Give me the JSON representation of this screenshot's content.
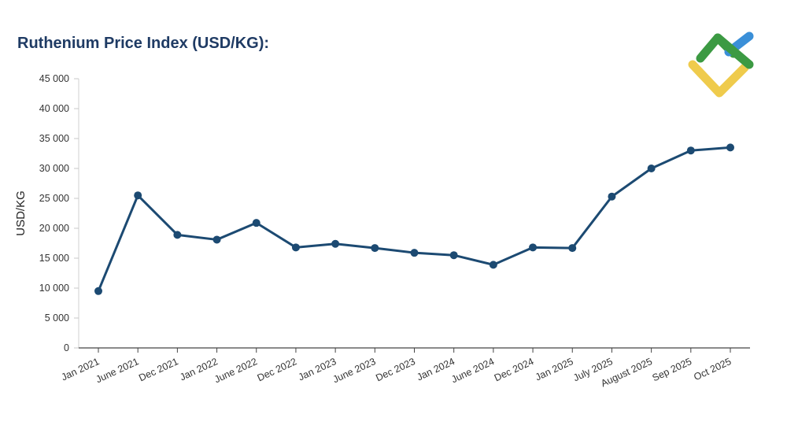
{
  "chart_data": {
    "type": "line",
    "title": "Ruthenium Price Index (USD/KG):",
    "ylabel": "USD/KG",
    "xlabel": "",
    "ylim": [
      0,
      45000
    ],
    "yticks": [
      "0",
      "5 000",
      "10 000",
      "15 000",
      "20 000",
      "25 000",
      "30 000",
      "35 000",
      "40 000",
      "45 000"
    ],
    "ytick_values": [
      0,
      5000,
      10000,
      15000,
      20000,
      25000,
      30000,
      35000,
      40000,
      45000
    ],
    "categories": [
      "Jan 2021",
      "June 2021",
      "Dec 2021",
      "Jan 2022",
      "June 2022",
      "Dec 2022",
      "Jan 2023",
      "June 2023",
      "Dec 2023",
      "Jan 2024",
      "June 2024",
      "Dec 2024",
      "Jan 2025",
      "July 2025",
      "August 2025",
      "Sep 2025",
      "Oct 2025"
    ],
    "series": [
      {
        "values": [
          9500,
          25500,
          18900,
          18100,
          20900,
          16800,
          17400,
          16700,
          15900,
          15500,
          13900,
          16800,
          16700,
          25300,
          30000,
          33000,
          33500
        ],
        "color": "#1c4a72"
      }
    ],
    "grid": false,
    "legend": "none"
  },
  "logo": {
    "colors": {
      "green": "#3c9a43",
      "blue": "#3a8fd8",
      "yellow": "#efcb4c"
    }
  }
}
